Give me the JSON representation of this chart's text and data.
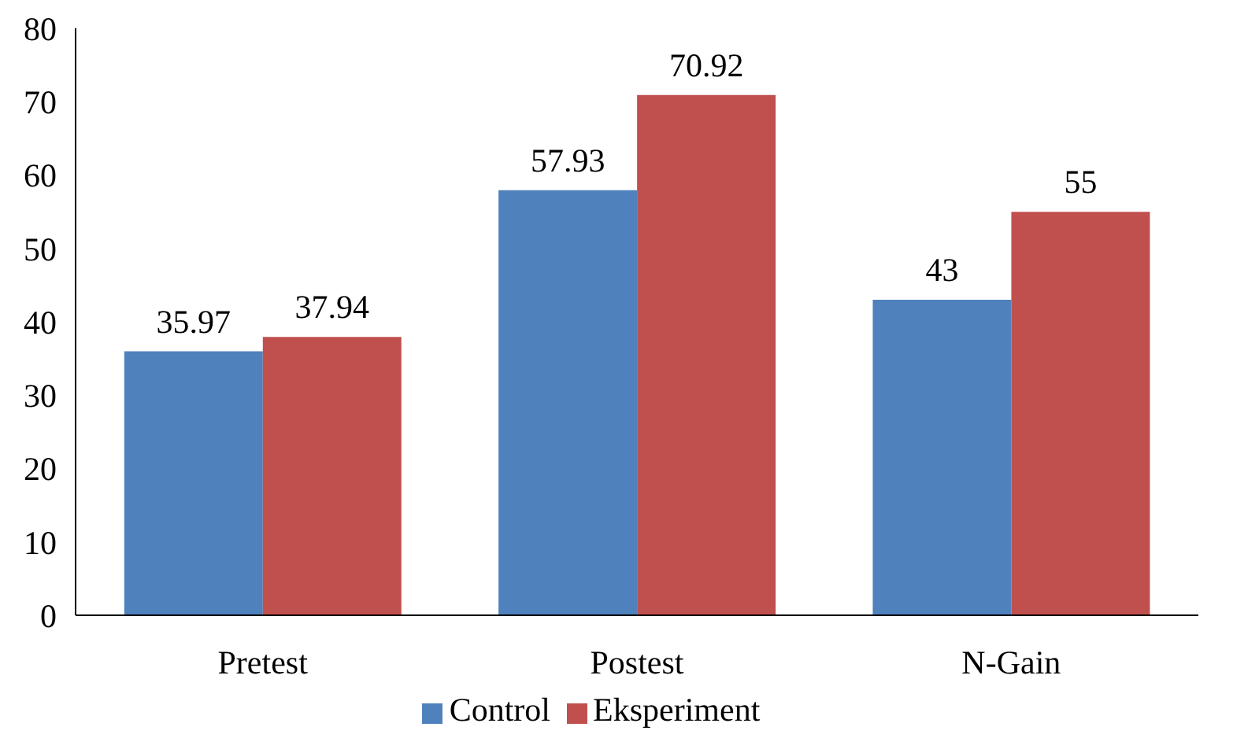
{
  "chart_data": {
    "type": "bar",
    "categories": [
      "Pretest",
      "Postest",
      "N-Gain"
    ],
    "series": [
      {
        "name": "Control",
        "color": "#4f81bd",
        "values": [
          35.97,
          57.93,
          43
        ]
      },
      {
        "name": "Eksperiment",
        "color": "#c0504d",
        "values": [
          37.94,
          70.92,
          55
        ]
      }
    ],
    "ylim": [
      0,
      80
    ],
    "yticks": [
      0,
      10,
      20,
      30,
      40,
      50,
      60,
      70,
      80
    ],
    "grid": false,
    "legend": "bottom",
    "data_labels": true
  }
}
